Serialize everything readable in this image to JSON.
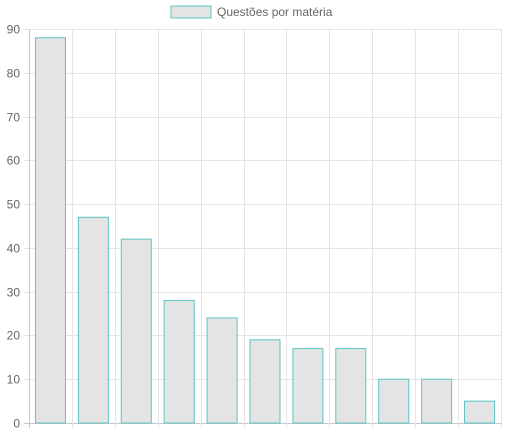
{
  "chart_data": {
    "type": "bar",
    "categories": [
      "",
      "",
      "",
      "",
      "",
      "",
      "",
      "",
      "",
      "",
      ""
    ],
    "series": [
      {
        "name": "Questões por matéria",
        "values": [
          88,
          47,
          42,
          28,
          24,
          19,
          17,
          17,
          10,
          10,
          5
        ]
      }
    ],
    "ylim": [
      0,
      90
    ],
    "yticks": [
      0,
      10,
      20,
      30,
      40,
      50,
      60,
      70,
      80,
      90
    ],
    "grid": true,
    "legend_position": "top-center",
    "colors": {
      "bar_fill": "#e4e4e4",
      "bar_stroke": "#5ec4c4",
      "grid": "#e5e5e5",
      "axis": "#c8c8c8",
      "text": "#666666"
    }
  }
}
